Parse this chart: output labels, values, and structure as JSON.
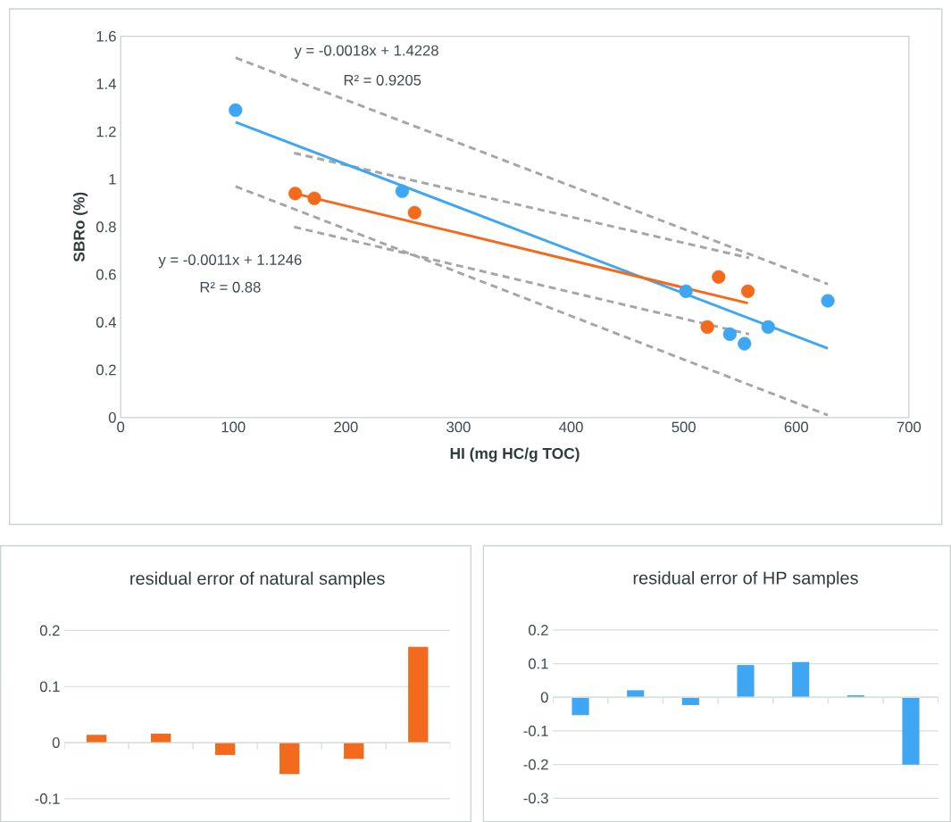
{
  "chart_data": [
    {
      "type": "scatter",
      "xlabel": "HI (mg HC/g TOC)",
      "ylabel": "SBRo (%)",
      "xlim": [
        0,
        700
      ],
      "xticks": [
        0,
        100,
        200,
        300,
        400,
        500,
        600,
        700
      ],
      "ylim": [
        0,
        1.6
      ],
      "yticks": [
        0,
        0.2,
        0.4,
        0.6,
        0.8,
        1,
        1.2,
        1.4,
        1.6
      ],
      "annotations": [
        "y = -0.0018x + 1.4228",
        "R² = 0.9205",
        "y = -0.0011x + 1.1246",
        "R² = 0.88"
      ],
      "series": [
        {
          "type": "line",
          "line_style": "dashed",
          "color": "#a6a6a6",
          "x": [
            102,
            628
          ],
          "values": [
            1.51,
            0.56
          ]
        },
        {
          "type": "line",
          "line_style": "dashed",
          "color": "#a6a6a6",
          "x": [
            102,
            628
          ],
          "values": [
            0.97,
            0.01
          ]
        },
        {
          "type": "line",
          "line_style": "dashed",
          "color": "#a6a6a6",
          "x": [
            154,
            558
          ],
          "values": [
            1.11,
            0.67
          ]
        },
        {
          "type": "line",
          "line_style": "dashed",
          "color": "#a6a6a6",
          "x": [
            154,
            558
          ],
          "values": [
            0.8,
            0.35
          ]
        },
        {
          "type": "line",
          "line_style": "solid",
          "color": "#3ea6f2",
          "x": [
            102,
            628
          ],
          "values": [
            1.24,
            0.29
          ]
        },
        {
          "type": "line",
          "line_style": "solid",
          "color": "#f46a1c",
          "x": [
            155,
            557
          ],
          "values": [
            0.94,
            0.48
          ]
        },
        {
          "type": "scatter",
          "marker": "circle",
          "color": "#3ea6f2",
          "x": [
            102,
            250,
            502,
            541,
            554,
            575,
            628
          ],
          "values": [
            1.29,
            0.95,
            0.53,
            0.35,
            0.31,
            0.38,
            0.49
          ]
        },
        {
          "type": "scatter",
          "marker": "circle",
          "color": "#f46a1c",
          "x": [
            155,
            172,
            261,
            521,
            531,
            557
          ],
          "values": [
            0.94,
            0.92,
            0.86,
            0.38,
            0.59,
            0.53
          ]
        }
      ]
    },
    {
      "type": "bar",
      "title": "residual error of natural samples",
      "categories": [
        null,
        null,
        null,
        null,
        null,
        null
      ],
      "values": [
        0.014,
        0.016,
        -0.022,
        -0.056,
        -0.029,
        0.171
      ],
      "color": "#f46a1c",
      "ylim": [
        -0.1,
        0.2
      ],
      "yticks": [
        -0.1,
        0,
        0.1,
        0.2
      ],
      "grid": "y"
    },
    {
      "type": "bar",
      "title": "residual error of HP samples",
      "categories": [
        null,
        null,
        null,
        null,
        null,
        null,
        null
      ],
      "values": [
        -0.053,
        0.021,
        -0.023,
        0.096,
        0.105,
        0.006,
        -0.2
      ],
      "color": "#3ea6f2",
      "ylim": [
        -0.3,
        0.2
      ],
      "yticks": [
        -0.3,
        -0.2,
        -0.1,
        0,
        0.1,
        0.2
      ],
      "grid": "y"
    }
  ]
}
